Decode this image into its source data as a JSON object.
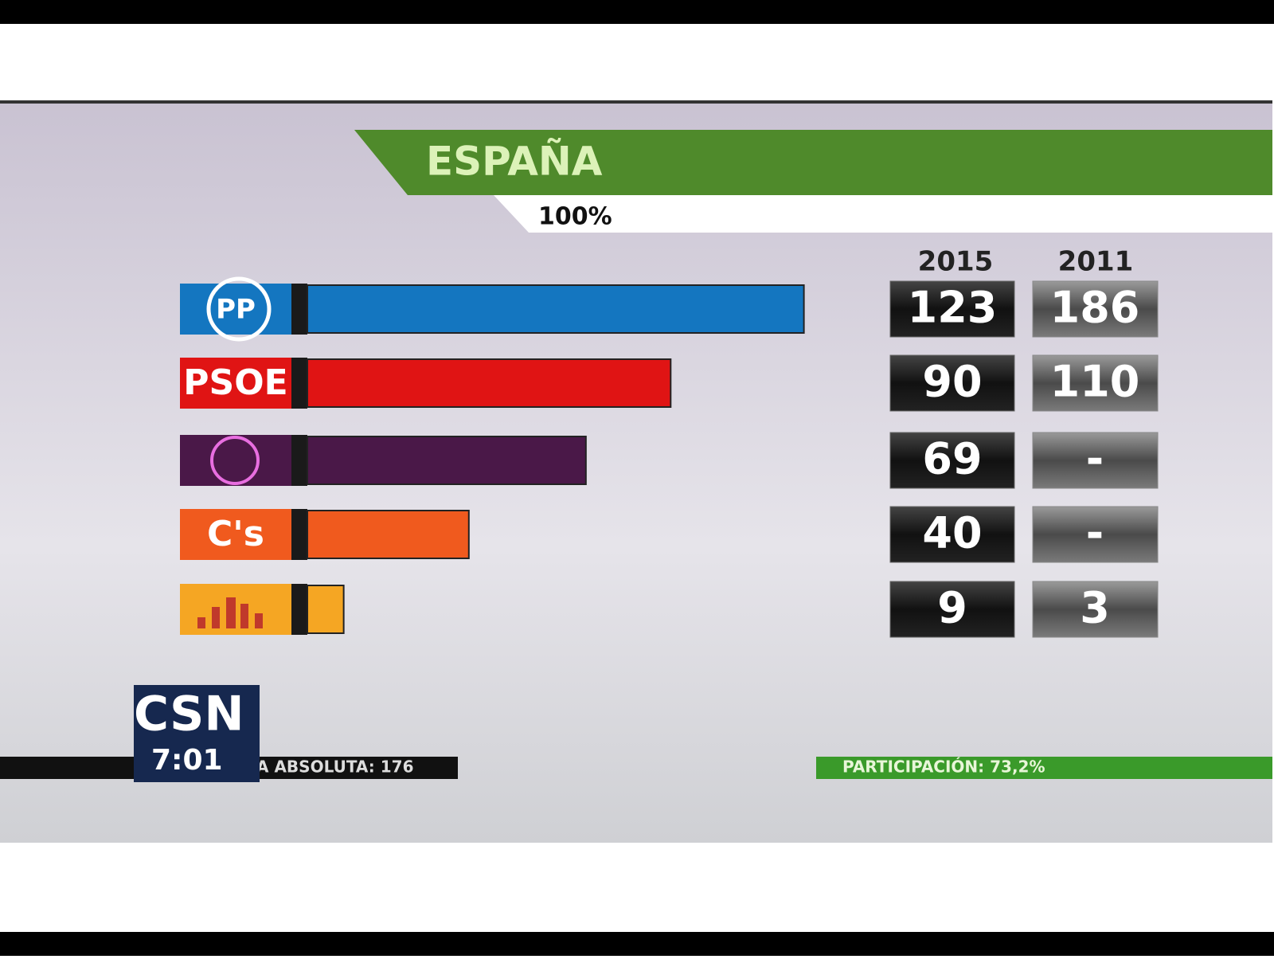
{
  "chart_data": {
    "type": "bar",
    "title": "ESPAÑA",
    "subtitle": "100%",
    "categories": [
      "PP",
      "PSOE",
      null,
      "C's",
      null
    ],
    "series": [
      {
        "name": "2015",
        "values": [
          123,
          90,
          69,
          40,
          9
        ],
        "colors": [
          "#1476c0",
          "#e01414",
          "#4a1848",
          "#f05a1e",
          "#f5a623"
        ]
      },
      {
        "name": "2011",
        "values": [
          186,
          110,
          null,
          null,
          3
        ],
        "value_labels": [
          "186",
          "110",
          "-",
          "-",
          "3"
        ]
      }
    ],
    "annotations": [
      "CSN",
      "7:01",
      "A ABSOLUTA: 176",
      "PARTICIPACIÓN: 73,2%"
    ]
  }
}
